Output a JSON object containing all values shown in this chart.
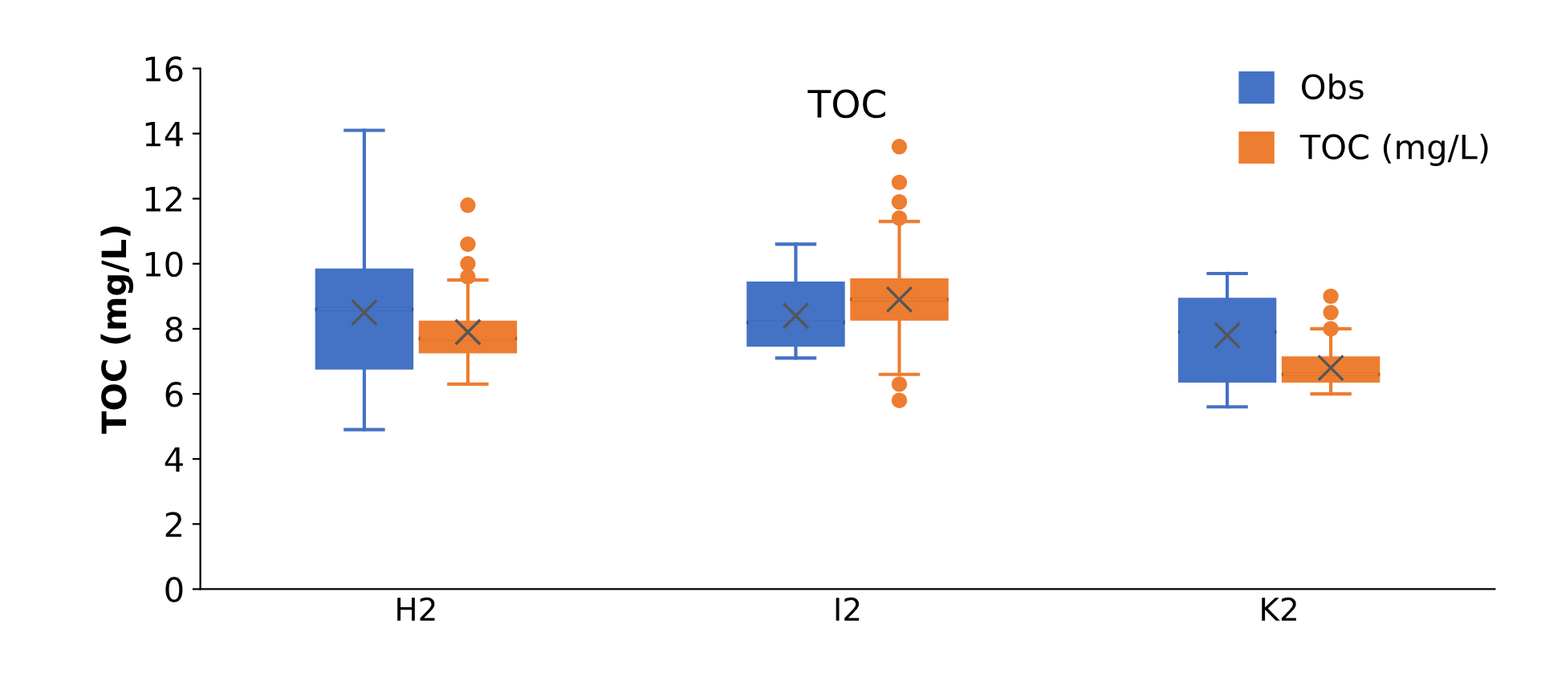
{
  "chart_data": {
    "type": "box",
    "title": "TOC",
    "ylabel": "TOC (mg/L)",
    "categories": [
      "H2",
      "I2",
      "K2"
    ],
    "series": [
      {
        "name": "Obs",
        "color": "#4472c4",
        "boxes": [
          {
            "low": 4.9,
            "q1": 6.8,
            "median": 8.6,
            "q3": 9.8,
            "high": 14.1,
            "mean": 8.5
          },
          {
            "low": 7.1,
            "q1": 7.5,
            "median": 8.2,
            "q3": 9.4,
            "high": 10.6,
            "mean": 8.4
          },
          {
            "low": 5.6,
            "q1": 6.4,
            "median": 7.9,
            "q3": 8.9,
            "high": 9.7,
            "mean": 7.8
          }
        ]
      },
      {
        "name": "TOC (mg/L)",
        "color": "#ed7d31",
        "boxes": [
          {
            "low": 6.3,
            "q1": 7.3,
            "median": 7.7,
            "q3": 8.2,
            "high": 9.5,
            "mean": 7.9,
            "outliers": [
              9.6,
              10.0,
              10.6,
              11.8
            ]
          },
          {
            "low": 6.6,
            "q1": 8.3,
            "median": 8.9,
            "q3": 9.5,
            "high": 11.3,
            "mean": 8.9,
            "outliers": [
              11.4,
              11.9,
              12.5,
              13.6,
              6.3,
              5.8
            ]
          },
          {
            "low": 6.0,
            "q1": 6.4,
            "median": 6.6,
            "q3": 7.1,
            "high": 8.0,
            "mean": 6.8,
            "outliers": [
              8.0,
              8.5,
              9.0
            ]
          }
        ]
      }
    ],
    "ylim": [
      0,
      16
    ],
    "yticks": [
      0,
      2,
      4,
      6,
      8,
      10,
      12,
      14,
      16
    ],
    "grid": false,
    "legend": "top right"
  }
}
